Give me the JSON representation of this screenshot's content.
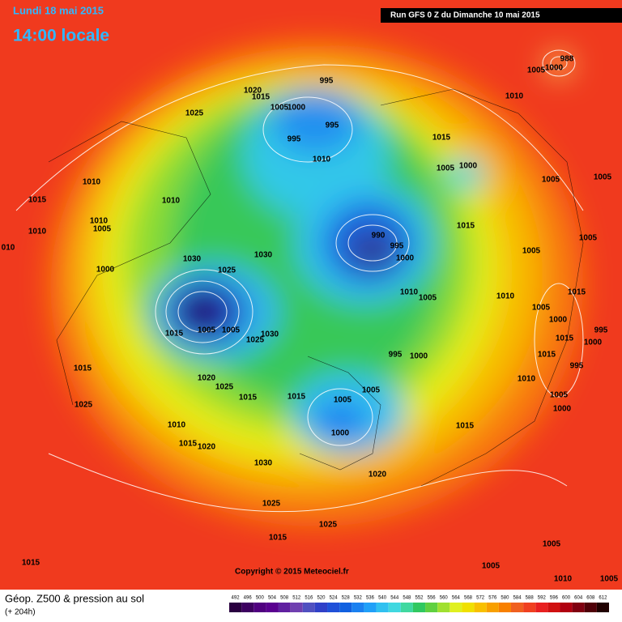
{
  "header": {
    "date": "Lundi 18 mai 2015",
    "time": "14:00 locale",
    "run": "Run GFS 0 Z du Dimanche 10 mai 2015"
  },
  "footer": {
    "title": "Géop. Z500 & pression au sol",
    "lead": "(+ 204h)",
    "copyright": "Copyright © 2015 Meteociel.fr"
  },
  "isobar_labels": [
    "995",
    "1020",
    "1015",
    "1005",
    "1000",
    "995",
    "995",
    "1010",
    "1025",
    "1010",
    "1015",
    "1010",
    "1010",
    "1005",
    "1010",
    "1000",
    "010",
    "1030",
    "1030",
    "1025",
    "1015",
    "1005",
    "1005",
    "1025",
    "1030",
    "1015",
    "1020",
    "1025",
    "1015",
    "1015",
    "1005",
    "1005",
    "1000",
    "995",
    "1000",
    "1025",
    "1010",
    "1015",
    "1020",
    "1030",
    "1020",
    "1025",
    "1025",
    "1015",
    "1015",
    "1005",
    "1005",
    "1010",
    "1005",
    "1005",
    "1000",
    "988",
    "1010",
    "1015",
    "1005",
    "1000",
    "1005",
    "1005",
    "1015",
    "1005",
    "1005",
    "1010",
    "1015",
    "1005",
    "1000",
    "1015",
    "995",
    "1000",
    "1015",
    "995",
    "1010",
    "1005",
    "1000",
    "1015",
    "990",
    "995",
    "1000",
    "1010",
    "1005"
  ],
  "colorbar": {
    "labels": [
      492,
      496,
      500,
      504,
      508,
      512,
      516,
      520,
      524,
      528,
      532,
      536,
      540,
      544,
      548,
      552,
      556,
      560,
      564,
      568,
      572,
      576,
      580,
      584,
      588,
      592,
      596,
      600,
      604,
      608,
      612
    ],
    "colors": [
      "#2a0040",
      "#3d0060",
      "#500080",
      "#5a0090",
      "#6020a0",
      "#7040b0",
      "#5050c0",
      "#3040c8",
      "#2050d8",
      "#1060e0",
      "#1a80f0",
      "#20a0f8",
      "#30c0f0",
      "#40d8e0",
      "#40d8a0",
      "#30c860",
      "#60d040",
      "#a0e030",
      "#e0f020",
      "#f0e000",
      "#f8c000",
      "#f8a000",
      "#f88000",
      "#f06020",
      "#f04020",
      "#e82020",
      "#d01010",
      "#b00010",
      "#800010",
      "#500008",
      "#200000"
    ]
  }
}
